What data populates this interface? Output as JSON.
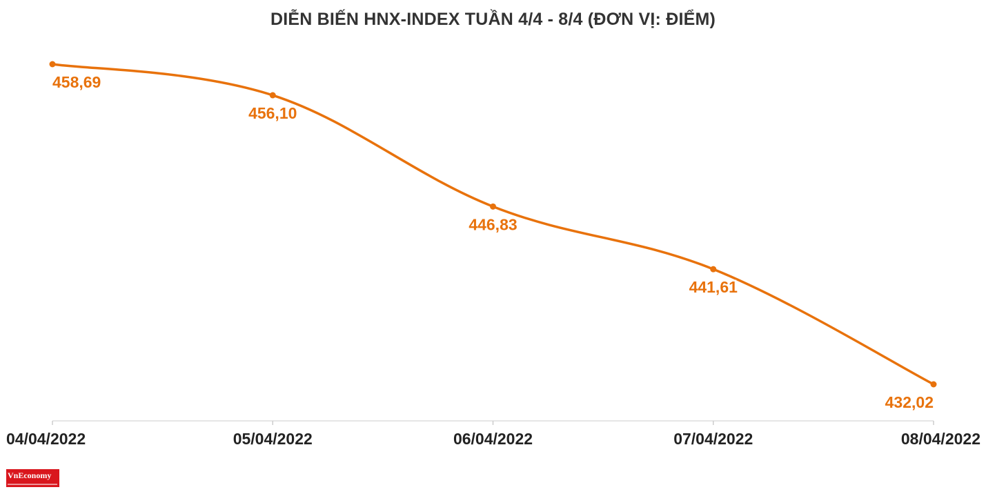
{
  "chart_data": {
    "type": "line",
    "title": "DIỄN BIẾN HNX-INDEX TUẦN 4/4 - 8/4 (ĐƠN VỊ: ĐIỂM)",
    "categories": [
      "04/04/2022",
      "05/04/2022",
      "06/04/2022",
      "07/04/2022",
      "08/04/2022"
    ],
    "series": [
      {
        "values": [
          458.69,
          456.1,
          446.83,
          441.61,
          432.02
        ],
        "labels": [
          "458,69",
          "456,10",
          "446,83",
          "441,61",
          "432,02"
        ],
        "color": "#e8720c"
      }
    ],
    "xlabel": "",
    "ylabel": "",
    "grid": false,
    "legend": "none"
  },
  "logo": {
    "text": "VnEconomy",
    "color": "#d9161d"
  }
}
